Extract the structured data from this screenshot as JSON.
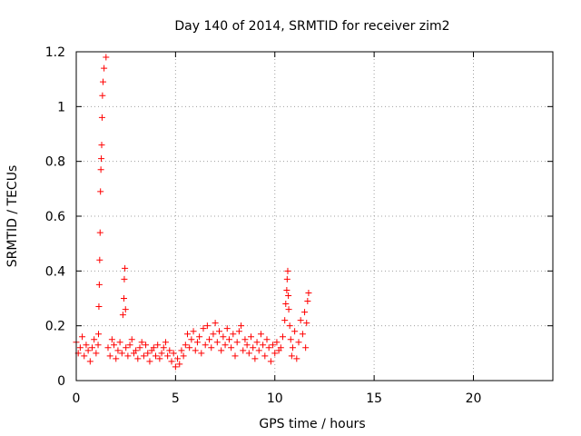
{
  "chart_data": {
    "type": "scatter",
    "title": "Day 140 of 2014, SRMTID for receiver zim2",
    "xlabel": "GPS time / hours",
    "ylabel": "SRMTID / TECUs",
    "xlim": [
      0,
      24
    ],
    "ylim": [
      0,
      1.2
    ],
    "xticks": [
      "0",
      "5",
      "10",
      "15",
      "20"
    ],
    "yticks": [
      "0",
      "0.2",
      "0.4",
      "0.6",
      "0.8",
      "1",
      "1.2"
    ],
    "grid": true,
    "marker": "+",
    "color": "#ff0000",
    "series": [
      {
        "name": "zim2",
        "x": [
          0.0,
          0.1,
          0.2,
          0.3,
          0.4,
          0.5,
          0.6,
          0.7,
          0.8,
          0.9,
          1.0,
          1.1,
          1.12,
          1.14,
          1.16,
          1.18,
          1.2,
          1.22,
          1.24,
          1.26,
          1.28,
          1.3,
          1.32,
          1.35,
          1.4,
          1.5,
          1.6,
          1.7,
          1.8,
          1.9,
          2.0,
          2.1,
          2.2,
          2.3,
          2.35,
          2.4,
          2.42,
          2.45,
          2.48,
          2.5,
          2.6,
          2.7,
          2.8,
          2.9,
          3.0,
          3.1,
          3.2,
          3.3,
          3.4,
          3.5,
          3.6,
          3.7,
          3.8,
          3.9,
          4.0,
          4.1,
          4.2,
          4.3,
          4.4,
          4.5,
          4.6,
          4.7,
          4.8,
          4.9,
          5.0,
          5.1,
          5.2,
          5.3,
          5.4,
          5.5,
          5.6,
          5.7,
          5.8,
          5.9,
          6.0,
          6.1,
          6.2,
          6.3,
          6.4,
          6.5,
          6.6,
          6.7,
          6.8,
          6.9,
          7.0,
          7.1,
          7.2,
          7.3,
          7.4,
          7.5,
          7.6,
          7.7,
          7.8,
          7.9,
          8.0,
          8.1,
          8.2,
          8.3,
          8.4,
          8.5,
          8.6,
          8.7,
          8.8,
          8.9,
          9.0,
          9.1,
          9.2,
          9.3,
          9.4,
          9.5,
          9.6,
          9.7,
          9.8,
          9.9,
          10.0,
          10.1,
          10.2,
          10.3,
          10.4,
          10.5,
          10.55,
          10.6,
          10.62,
          10.65,
          10.68,
          10.7,
          10.75,
          10.8,
          10.85,
          10.9,
          11.0,
          11.1,
          11.2,
          11.3,
          11.4,
          11.5,
          11.55,
          11.6,
          11.65,
          11.7
        ],
        "y": [
          0.14,
          0.1,
          0.12,
          0.16,
          0.09,
          0.13,
          0.11,
          0.07,
          0.12,
          0.15,
          0.1,
          0.13,
          0.17,
          0.27,
          0.35,
          0.44,
          0.54,
          0.69,
          0.77,
          0.81,
          0.86,
          0.96,
          1.04,
          1.09,
          1.14,
          1.18,
          0.12,
          0.09,
          0.15,
          0.13,
          0.08,
          0.11,
          0.14,
          0.1,
          0.24,
          0.3,
          0.37,
          0.41,
          0.26,
          0.12,
          0.09,
          0.13,
          0.15,
          0.1,
          0.11,
          0.08,
          0.12,
          0.14,
          0.09,
          0.13,
          0.1,
          0.07,
          0.11,
          0.12,
          0.09,
          0.13,
          0.08,
          0.1,
          0.12,
          0.14,
          0.09,
          0.11,
          0.07,
          0.1,
          0.05,
          0.08,
          0.06,
          0.11,
          0.09,
          0.13,
          0.17,
          0.12,
          0.15,
          0.18,
          0.11,
          0.14,
          0.16,
          0.1,
          0.19,
          0.13,
          0.2,
          0.15,
          0.12,
          0.17,
          0.21,
          0.14,
          0.18,
          0.11,
          0.16,
          0.13,
          0.19,
          0.15,
          0.12,
          0.17,
          0.09,
          0.14,
          0.18,
          0.2,
          0.11,
          0.15,
          0.13,
          0.1,
          0.16,
          0.12,
          0.08,
          0.14,
          0.11,
          0.17,
          0.13,
          0.09,
          0.15,
          0.12,
          0.07,
          0.13,
          0.1,
          0.14,
          0.11,
          0.12,
          0.16,
          0.22,
          0.28,
          0.33,
          0.37,
          0.4,
          0.31,
          0.26,
          0.2,
          0.15,
          0.09,
          0.12,
          0.18,
          0.08,
          0.14,
          0.22,
          0.17,
          0.25,
          0.12,
          0.21,
          0.29,
          0.32
        ]
      }
    ]
  }
}
